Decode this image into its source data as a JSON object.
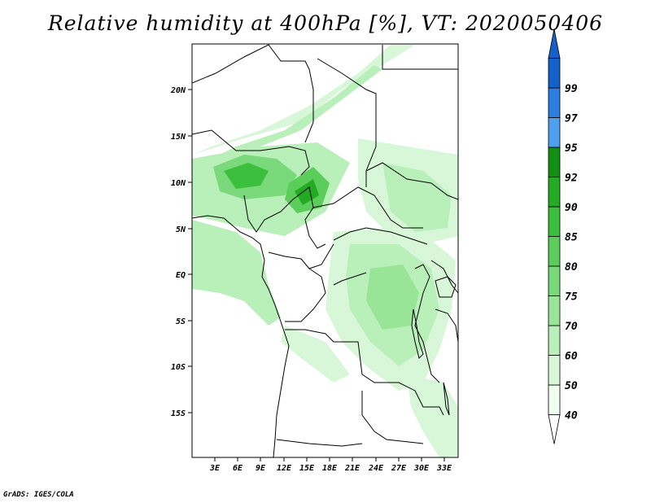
{
  "title": "Relative humidity at 400hPa [%], VT: 2020050406",
  "credit": "GrADS: IGES/COLA",
  "map": {
    "lat_labels": [
      "20N",
      "15N",
      "10N",
      "5N",
      "EQ",
      "5S",
      "10S",
      "15S"
    ],
    "lon_labels": [
      "3E",
      "6E",
      "9E",
      "12E",
      "15E",
      "18E",
      "21E",
      "24E",
      "27E",
      "30E",
      "33E"
    ],
    "lat_range": [
      -19.5,
      24.5
    ],
    "lon_range": [
      0.5,
      35
    ]
  },
  "colorbar": {
    "levels": [
      "40",
      "50",
      "60",
      "70",
      "75",
      "80",
      "85",
      "90",
      "92",
      "95",
      "97",
      "99"
    ],
    "colors": [
      "#f0fff0",
      "#d8f7d8",
      "#b9efb9",
      "#98e598",
      "#7ad97a",
      "#5acd5a",
      "#3cbf3c",
      "#23ac23",
      "#128f12",
      "#4ea0ee",
      "#2c7fe0",
      "#1461cc"
    ]
  }
}
